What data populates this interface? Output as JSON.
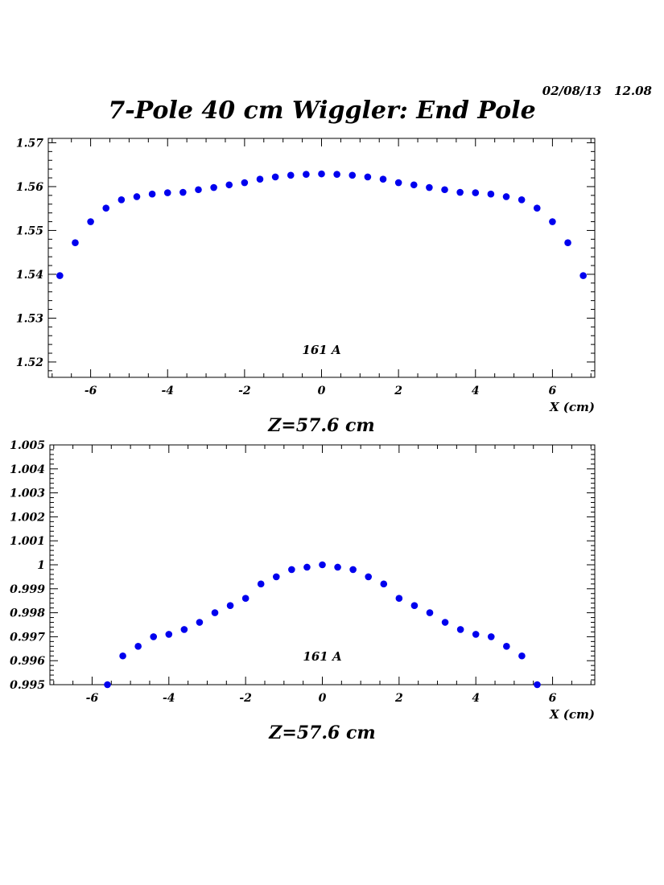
{
  "header": {
    "date_stamp": "02/08/13   12.08",
    "title": "7-Pole 40 cm Wiggler: End Pole"
  },
  "colors": {
    "marker": "#0000ee",
    "axis": "#000000"
  },
  "chart_data": [
    {
      "type": "scatter",
      "title": "7-Pole 40 cm Wiggler: End Pole",
      "subtitle": "Z=57.6 cm",
      "annotation": "161 A",
      "xlabel": "X (cm)",
      "ylabel": "",
      "xlim": [
        -7.1,
        7.1
      ],
      "ylim": [
        1.5165,
        1.571
      ],
      "xticks": [
        -6,
        -4,
        -2,
        0,
        2,
        4,
        6
      ],
      "yticks": [
        1.52,
        1.53,
        1.54,
        1.55,
        1.56,
        1.57
      ],
      "ytick_labels": [
        "1.52",
        "1.53",
        "1.54",
        "1.55",
        "1.56",
        "1.57"
      ],
      "grid": false,
      "series": [
        {
          "x": [
            -6.8,
            -6.4,
            -6.0,
            -5.6,
            -5.2,
            -4.8,
            -4.4,
            -4.0,
            -3.6,
            -3.2,
            -2.8,
            -2.4,
            -2.0,
            -1.6,
            -1.2,
            -0.8,
            -0.4,
            0.0,
            0.4,
            0.8,
            1.2,
            1.6,
            2.0,
            2.4,
            2.8,
            3.2,
            3.6,
            4.0,
            4.4,
            4.8,
            5.2,
            5.6,
            6.0,
            6.4,
            6.8
          ],
          "y": [
            1.5397,
            1.5472,
            1.552,
            1.5551,
            1.557,
            1.5577,
            1.5583,
            1.5586,
            1.5587,
            1.5593,
            1.5598,
            1.5604,
            1.5609,
            1.5617,
            1.5622,
            1.5626,
            1.5628,
            1.5629,
            1.5628,
            1.5626,
            1.5622,
            1.5617,
            1.5609,
            1.5604,
            1.5598,
            1.5593,
            1.5587,
            1.5586,
            1.5583,
            1.5577,
            1.557,
            1.5551,
            1.552,
            1.5472,
            1.5397
          ]
        }
      ]
    },
    {
      "type": "scatter",
      "subtitle": "Z=57.6 cm",
      "annotation": "161 A",
      "xlabel": "X (cm)",
      "ylabel": "",
      "xlim": [
        -7.1,
        7.1
      ],
      "ylim": [
        0.995,
        1.005
      ],
      "xticks": [
        -6,
        -4,
        -2,
        0,
        2,
        4,
        6
      ],
      "yticks": [
        0.995,
        0.996,
        0.997,
        0.998,
        0.999,
        1.0,
        1.001,
        1.002,
        1.003,
        1.004,
        1.005
      ],
      "ytick_labels": [
        "0.995",
        "0.996",
        "0.997",
        "0.998",
        "0.999",
        "1",
        "1.001",
        "1.002",
        "1.003",
        "1.004",
        "1.005"
      ],
      "grid": false,
      "series": [
        {
          "x": [
            -5.6,
            -5.2,
            -4.8,
            -4.4,
            -4.0,
            -3.6,
            -3.2,
            -2.8,
            -2.4,
            -2.0,
            -1.6,
            -1.2,
            -0.8,
            -0.4,
            0.0,
            0.4,
            0.8,
            1.2,
            1.6,
            2.0,
            2.4,
            2.8,
            3.2,
            3.6,
            4.0,
            4.4,
            4.8,
            5.2,
            5.6
          ],
          "y": [
            0.995,
            0.9962,
            0.9966,
            0.997,
            0.9971,
            0.9973,
            0.9976,
            0.998,
            0.9983,
            0.9986,
            0.9992,
            0.9995,
            0.9998,
            0.9999,
            1.0,
            0.9999,
            0.9998,
            0.9995,
            0.9992,
            0.9986,
            0.9983,
            0.998,
            0.9976,
            0.9973,
            0.9971,
            0.997,
            0.9966,
            0.9962,
            0.995
          ]
        }
      ]
    }
  ]
}
